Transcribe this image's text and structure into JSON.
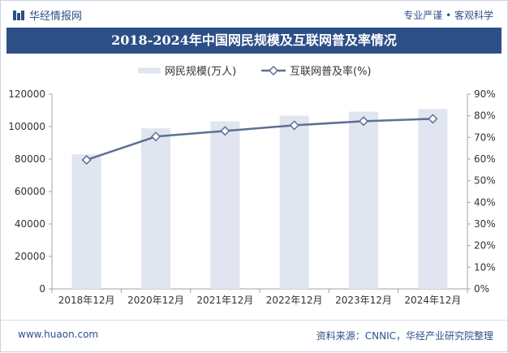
{
  "header": {
    "logo_text": "华经情报网",
    "slogan": "专业严谨 • 客观科学",
    "title": "2018-2024年中国网民规模及互联网普及率情况"
  },
  "footer": {
    "website": "www.huaon.com",
    "source": "资料来源：CNNIC，华经产业研究院整理"
  },
  "colors": {
    "brand": "#2d4f87",
    "bar": "#e1e5ef",
    "line": "#5f6f91"
  },
  "chart_data": {
    "type": "bar+line",
    "categories": [
      "2018年12月",
      "2020年12月",
      "2021年12月",
      "2022年12月",
      "2023年12月",
      "2024年12月"
    ],
    "series": [
      {
        "name": "网民规模(万人)",
        "type": "bar",
        "axis": "left",
        "values": [
          82900,
          98900,
          103200,
          106700,
          109200,
          110800
        ]
      },
      {
        "name": "互联网普及率(%)",
        "type": "line",
        "axis": "right",
        "values": [
          59.6,
          70.4,
          73.0,
          75.6,
          77.5,
          78.6
        ]
      }
    ],
    "left_axis": {
      "min": 0,
      "max": 120000,
      "ticks": [
        "0",
        "20000",
        "40000",
        "60000",
        "80000",
        "100000",
        "120000"
      ]
    },
    "right_axis": {
      "min": 0,
      "max": 90,
      "ticks": [
        "0%",
        "10%",
        "20%",
        "30%",
        "40%",
        "50%",
        "60%",
        "70%",
        "80%",
        "90%"
      ]
    },
    "legend": {
      "position": "top",
      "bar_label": "网民规模(万人)",
      "line_label": "互联网普及率(%)"
    }
  }
}
